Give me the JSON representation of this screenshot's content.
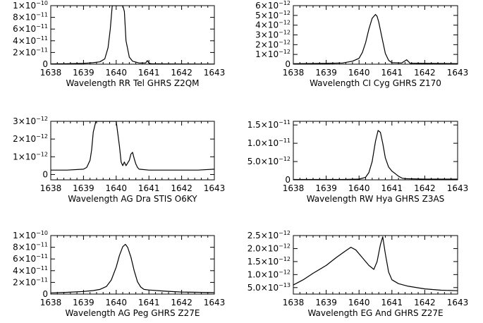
{
  "chart_data": [
    {
      "type": "line",
      "xlabel": "Wavelength   RR Tel   GHRS  Z2QM",
      "xlim": [
        1638,
        1643
      ],
      "ylim": [
        0,
        1e-10
      ],
      "x_ticks": [
        1638,
        1639,
        1640,
        1641,
        1642,
        1643
      ],
      "y_ticks": [
        {
          "value": 0,
          "mant": "0",
          "exp": ""
        },
        {
          "value": 2e-11,
          "mant": "2×10",
          "exp": "−11"
        },
        {
          "value": 4e-11,
          "mant": "4×10",
          "exp": "−11"
        },
        {
          "value": 6e-11,
          "mant": "6×10",
          "exp": "−11"
        },
        {
          "value": 8e-11,
          "mant": "8×10",
          "exp": "−11"
        },
        {
          "value": 1e-10,
          "mant": "1×10",
          "exp": "−10"
        }
      ],
      "series": [
        {
          "x": [
            1638.0,
            1638.5,
            1639.0,
            1639.3,
            1639.5,
            1639.65,
            1639.75,
            1639.82,
            1639.88,
            1640.0,
            1640.2,
            1640.25,
            1640.3,
            1640.4,
            1640.5,
            1640.7,
            1640.9,
            1640.95,
            1641.0,
            1641.05,
            1641.1,
            1641.5,
            1642.0,
            1643.0
          ],
          "y": [
            5e-13,
            8e-13,
            1.5e-12,
            2.5e-12,
            4e-12,
            9e-12,
            2.8e-11,
            6e-11,
            1e-10,
            1e-10,
            1e-10,
            9e-11,
            4e-11,
            1.2e-11,
            5e-12,
            2e-12,
            2e-12,
            6e-12,
            2e-12,
            1e-12,
            8e-13,
            5e-13,
            4e-13,
            3e-13
          ]
        }
      ]
    },
    {
      "type": "line",
      "xlabel": "Wavelength   CI Cyg   GHRS  Z170",
      "xlim": [
        1638,
        1643
      ],
      "ylim": [
        0,
        6e-12
      ],
      "x_ticks": [
        1638,
        1639,
        1640,
        1641,
        1642,
        1643
      ],
      "y_ticks": [
        {
          "value": 0,
          "mant": "0",
          "exp": ""
        },
        {
          "value": 1e-12,
          "mant": "1×10",
          "exp": "−12"
        },
        {
          "value": 2e-12,
          "mant": "2×10",
          "exp": "−12"
        },
        {
          "value": 3e-12,
          "mant": "3×10",
          "exp": "−12"
        },
        {
          "value": 4e-12,
          "mant": "4×10",
          "exp": "−12"
        },
        {
          "value": 5e-12,
          "mant": "5×10",
          "exp": "−12"
        },
        {
          "value": 6e-12,
          "mant": "6×10",
          "exp": "−12"
        }
      ],
      "series": [
        {
          "x": [
            1638.0,
            1639.0,
            1639.5,
            1639.8,
            1640.0,
            1640.1,
            1640.2,
            1640.3,
            1640.4,
            1640.5,
            1640.55,
            1640.6,
            1640.7,
            1640.8,
            1640.9,
            1641.0,
            1641.3,
            1641.45,
            1641.55,
            1642.0,
            1643.0
          ],
          "y": [
            5e-14,
            8e-14,
            1.2e-13,
            3e-13,
            6e-13,
            1.2e-12,
            2.2e-12,
            3.6e-12,
            4.7e-12,
            5.1e-12,
            4.9e-12,
            4.3e-12,
            2.7e-12,
            1.1e-12,
            4e-13,
            1.5e-13,
            1.2e-13,
            4.5e-13,
            1e-13,
            8e-14,
            6e-14
          ]
        }
      ]
    },
    {
      "type": "line",
      "xlabel": "Wavelength   AG Dra   STIS  O6KY",
      "xlim": [
        1638,
        1643
      ],
      "ylim": [
        -3e-13,
        3e-12
      ],
      "x_ticks": [
        1638,
        1639,
        1640,
        1641,
        1642,
        1643
      ],
      "y_ticks": [
        {
          "value": 0,
          "mant": "0",
          "exp": ""
        },
        {
          "value": 1e-12,
          "mant": "1×10",
          "exp": "−12"
        },
        {
          "value": 2e-12,
          "mant": "2×10",
          "exp": "−12"
        },
        {
          "value": 3e-12,
          "mant": "3×10",
          "exp": "−12"
        }
      ],
      "series": [
        {
          "x": [
            1638.0,
            1638.5,
            1639.0,
            1639.1,
            1639.2,
            1639.25,
            1639.3,
            1639.38,
            1640.0,
            1640.1,
            1640.15,
            1640.2,
            1640.25,
            1640.3,
            1640.4,
            1640.45,
            1640.5,
            1640.55,
            1640.6,
            1640.65,
            1640.7,
            1641.0,
            1642.0,
            1642.5,
            1643.0
          ],
          "y": [
            2.5e-13,
            2.5e-13,
            3e-13,
            4e-13,
            8e-13,
            1.4e-12,
            2.4e-12,
            3e-12,
            3e-12,
            1.6e-12,
            7e-13,
            5e-13,
            7e-13,
            5e-13,
            8e-13,
            1.15e-12,
            1.25e-12,
            9e-13,
            6e-13,
            4e-13,
            3e-13,
            2.5e-13,
            2.5e-13,
            2.5e-13,
            3e-13
          ]
        }
      ]
    },
    {
      "type": "line",
      "xlabel": "Wavelength   RW Hya   GHRS  Z3AS",
      "xlim": [
        1638,
        1643
      ],
      "ylim": [
        0,
        1.6e-11
      ],
      "x_ticks": [
        1638,
        1639,
        1640,
        1641,
        1642,
        1643
      ],
      "y_ticks": [
        {
          "value": 0,
          "mant": "0",
          "exp": ""
        },
        {
          "value": 5e-12,
          "mant": "5.0×10",
          "exp": "−12"
        },
        {
          "value": 1e-11,
          "mant": "1.0×10",
          "exp": "−11"
        },
        {
          "value": 1.5e-11,
          "mant": "1.5×10",
          "exp": "−11"
        }
      ],
      "series": [
        {
          "x": [
            1638.0,
            1639.5,
            1640.0,
            1640.2,
            1640.3,
            1640.4,
            1640.5,
            1640.58,
            1640.65,
            1640.72,
            1640.8,
            1640.9,
            1641.0,
            1641.1,
            1641.2,
            1641.3,
            1641.4,
            1642.0,
            1643.0
          ],
          "y": [
            1e-13,
            1e-13,
            2e-13,
            7e-13,
            2e-12,
            5e-12,
            1.05e-11,
            1.35e-11,
            1.3e-11,
            1e-11,
            6e-12,
            3.5e-12,
            2.4e-12,
            1.7e-12,
            1e-12,
            5e-13,
            3e-13,
            2e-13,
            2e-13
          ]
        }
      ]
    },
    {
      "type": "line",
      "xlabel": "Wavelength   AG Peg   GHRS  Z27E",
      "xlim": [
        1638,
        1643
      ],
      "ylim": [
        0,
        1e-10
      ],
      "x_ticks": [
        1638,
        1639,
        1640,
        1641,
        1642,
        1643
      ],
      "y_ticks": [
        {
          "value": 0,
          "mant": "0",
          "exp": ""
        },
        {
          "value": 2e-11,
          "mant": "2×10",
          "exp": "−11"
        },
        {
          "value": 4e-11,
          "mant": "4×10",
          "exp": "−11"
        },
        {
          "value": 6e-11,
          "mant": "6×10",
          "exp": "−11"
        },
        {
          "value": 8e-11,
          "mant": "8×10",
          "exp": "−11"
        },
        {
          "value": 1e-10,
          "mant": "1×10",
          "exp": "−10"
        }
      ],
      "series": [
        {
          "x": [
            1638.0,
            1638.5,
            1639.0,
            1639.3,
            1639.5,
            1639.7,
            1639.85,
            1640.0,
            1640.1,
            1640.2,
            1640.28,
            1640.35,
            1640.45,
            1640.55,
            1640.65,
            1640.75,
            1640.85,
            1641.0,
            1641.5,
            1642.0,
            1643.0
          ],
          "y": [
            2e-12,
            3e-12,
            4.5e-12,
            6e-12,
            8e-12,
            1.3e-11,
            2.4e-11,
            4.6e-11,
            6.6e-11,
            8.1e-11,
            8.5e-11,
            8e-11,
            6.3e-11,
            4e-11,
            2.1e-11,
            1.2e-11,
            8e-12,
            7e-12,
            5e-12,
            3.5e-12,
            2.5e-12
          ]
        }
      ]
    },
    {
      "type": "line",
      "xlabel": "Wavelength   EG And   GHRS  Z27E",
      "xlim": [
        1638,
        1643
      ],
      "ylim": [
        2.5e-13,
        2.5e-12
      ],
      "x_ticks": [
        1638,
        1639,
        1640,
        1641,
        1642,
        1643
      ],
      "y_ticks": [
        {
          "value": 5e-13,
          "mant": "5.0×10",
          "exp": "−13"
        },
        {
          "value": 1e-12,
          "mant": "1.0×10",
          "exp": "−12"
        },
        {
          "value": 1.5e-12,
          "mant": "1.5×10",
          "exp": "−12"
        },
        {
          "value": 2e-12,
          "mant": "2.0×10",
          "exp": "−12"
        },
        {
          "value": 2.5e-12,
          "mant": "2.5×10",
          "exp": "−12"
        }
      ],
      "series": [
        {
          "x": [
            1638.0,
            1638.3,
            1638.6,
            1639.0,
            1639.3,
            1639.6,
            1639.75,
            1639.9,
            1640.1,
            1640.3,
            1640.45,
            1640.55,
            1640.65,
            1640.72,
            1640.8,
            1640.9,
            1641.0,
            1641.2,
            1641.5,
            1642.0,
            1642.5,
            1643.0
          ],
          "y": [
            6e-13,
            8e-13,
            1.05e-12,
            1.35e-12,
            1.65e-12,
            1.92e-12,
            2.05e-12,
            1.95e-12,
            1.65e-12,
            1.35e-12,
            1.2e-12,
            1.5e-12,
            2.15e-12,
            2.45e-12,
            1.8e-12,
            1.1e-12,
            8e-13,
            6.5e-13,
            5.5e-13,
            4.5e-13,
            4e-13,
            3.8e-13
          ]
        }
      ]
    }
  ]
}
